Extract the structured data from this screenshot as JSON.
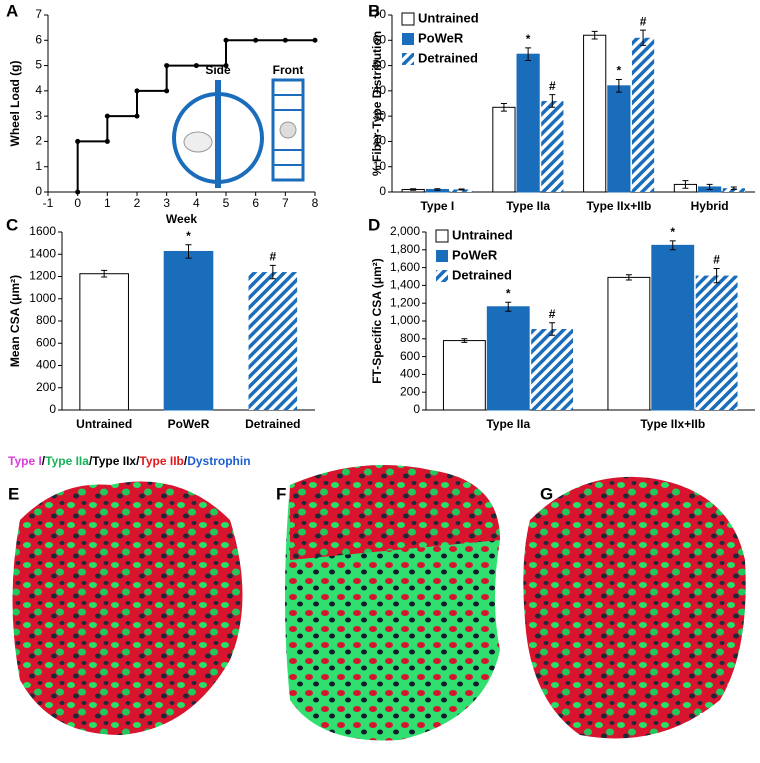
{
  "chart_data": [
    {
      "type": "line",
      "panel": "A",
      "xlabel": "Week",
      "ylabel": "Wheel Load (g)",
      "x": [
        0,
        0,
        1,
        1,
        2,
        2,
        3,
        3,
        4,
        5,
        5,
        6,
        7,
        8
      ],
      "values": [
        0,
        2,
        2,
        3,
        3,
        4,
        4,
        5,
        5,
        5,
        6,
        6,
        6,
        6
      ],
      "color": "#000000",
      "xlim": [
        -1,
        8
      ],
      "xticks": [
        -1,
        0,
        1,
        2,
        3,
        4,
        5,
        6,
        7,
        8
      ],
      "ylim": [
        0,
        7
      ],
      "yticks": [
        0,
        1,
        2,
        3,
        4,
        5,
        6,
        7
      ],
      "annotations": [
        "Side",
        "Front"
      ]
    },
    {
      "type": "bar",
      "panel": "B",
      "ylabel": "% Fiber-Type Distribution",
      "categories": [
        "Type I",
        "Type IIa",
        "Type IIx+IIb",
        "Hybrid"
      ],
      "series": [
        {
          "name": "Untrained",
          "color": "#ffffff",
          "values": [
            1,
            33.5,
            62,
            3
          ],
          "errors": [
            0.3,
            1.5,
            1.5,
            1.5
          ],
          "sig": [
            null,
            null,
            null,
            null
          ]
        },
        {
          "name": "PoWeR",
          "color": "#1a6dbb",
          "values": [
            1,
            54.5,
            42,
            2
          ],
          "errors": [
            0.3,
            2.5,
            2.5,
            1
          ],
          "sig": [
            null,
            "*",
            "*",
            null
          ]
        },
        {
          "name": "Detrained",
          "color": "#1a6dbb",
          "pattern": "hatch",
          "values": [
            1,
            36,
            61,
            1.5
          ],
          "errors": [
            0.2,
            2.5,
            3,
            0.5
          ],
          "sig": [
            null,
            "#",
            "#",
            null
          ]
        }
      ],
      "ylim": [
        0,
        70
      ],
      "yticks": [
        0,
        10,
        20,
        30,
        40,
        50,
        60,
        70
      ],
      "legend": "top-left"
    },
    {
      "type": "bar",
      "panel": "C",
      "ylabel": "Mean CSA (μm²)",
      "categories": [
        "Untrained",
        "PoWeR",
        "Detrained"
      ],
      "series": [
        {
          "color": "#ffffff",
          "values": [
            1225,
            null,
            null
          ],
          "errors": [
            30,
            null,
            null
          ],
          "sig": [
            null,
            null,
            null
          ]
        },
        {
          "color": "#1a6dbb",
          "values": [
            null,
            1425,
            null
          ],
          "errors": [
            null,
            60,
            null
          ],
          "sig": [
            null,
            "*",
            null
          ]
        },
        {
          "color": "#1a6dbb",
          "pattern": "hatch",
          "values": [
            null,
            null,
            1240
          ],
          "errors": [
            null,
            null,
            60
          ],
          "sig": [
            null,
            null,
            "#"
          ]
        }
      ],
      "stacked_single": true,
      "ylim": [
        0,
        1600
      ],
      "yticks": [
        0,
        200,
        400,
        600,
        800,
        1000,
        1200,
        1400,
        1600
      ]
    },
    {
      "type": "bar",
      "panel": "D",
      "ylabel": "FT-Specific CSA (μm²)",
      "categories": [
        "Type IIa",
        "Type IIx+IIb"
      ],
      "series": [
        {
          "name": "Untrained",
          "color": "#ffffff",
          "values": [
            780,
            1490
          ],
          "errors": [
            20,
            30
          ],
          "sig": [
            null,
            null
          ]
        },
        {
          "name": "PoWeR",
          "color": "#1a6dbb",
          "values": [
            1160,
            1850
          ],
          "errors": [
            50,
            50
          ],
          "sig": [
            "*",
            "*"
          ]
        },
        {
          "name": "Detrained",
          "color": "#1a6dbb",
          "pattern": "hatch",
          "values": [
            910,
            1510
          ],
          "errors": [
            70,
            80
          ],
          "sig": [
            "#",
            "#"
          ]
        }
      ],
      "ylim": [
        0,
        2000
      ],
      "yticks": [
        0,
        200,
        400,
        600,
        800,
        {
          "value": 1000,
          "label": "1,000"
        },
        {
          "value": 1200,
          "label": "1,200"
        },
        {
          "value": 1400,
          "label": "1,400"
        },
        {
          "value": 1600,
          "label": "1,600"
        },
        {
          "value": 1800,
          "label": "1,800"
        },
        {
          "value": 2000,
          "label": "2,000"
        }
      ],
      "legend": "top-left"
    }
  ],
  "figure_legend": {
    "separator": "/",
    "items": [
      {
        "text": "Type I",
        "color": "#d93ed9"
      },
      {
        "text": "Type IIa",
        "color": "#17b35a"
      },
      {
        "text": "Type IIx",
        "color": "#000000"
      },
      {
        "text": "Type IIb",
        "color": "#e01b1b"
      },
      {
        "text": "Dystrophin",
        "color": "#1f5fd0"
      }
    ]
  },
  "images": [
    "E",
    "F",
    "G"
  ]
}
